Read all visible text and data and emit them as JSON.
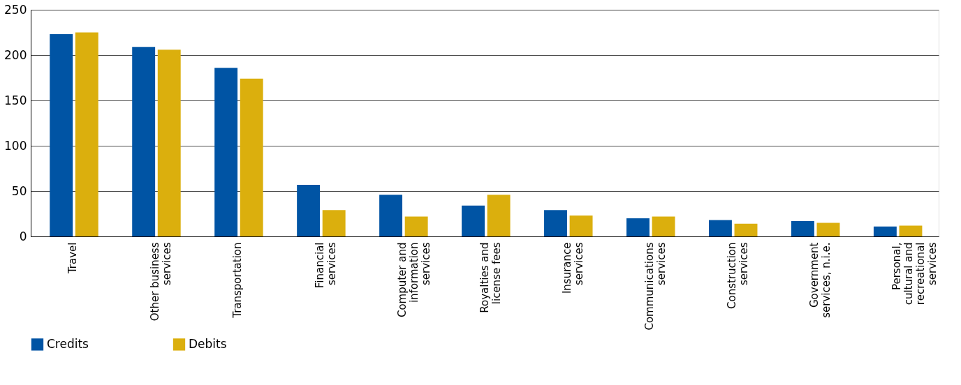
{
  "chart_data": {
    "type": "bar",
    "categories": [
      "Travel",
      "Other business services",
      "Transportation",
      "Financial services",
      "Computer and information services",
      "Royalties and license fees",
      "Insurance services",
      "Communications services",
      "Construction services",
      "Government services, n.i.e.",
      "Personal, cultural and recreational services"
    ],
    "series": [
      {
        "name": "Credits",
        "color": "#0054a4",
        "values": [
          223,
          209,
          186,
          57,
          46,
          34,
          29,
          20,
          18,
          17,
          11
        ]
      },
      {
        "name": "Debits",
        "color": "#dbaf0d",
        "values": [
          225,
          206,
          174,
          29,
          22,
          46,
          23,
          22,
          14,
          15,
          12
        ]
      }
    ],
    "ylim": [
      0,
      250
    ],
    "yticks": [
      0,
      50,
      100,
      150,
      200,
      250
    ],
    "grid": "y",
    "legend": "bottom"
  }
}
